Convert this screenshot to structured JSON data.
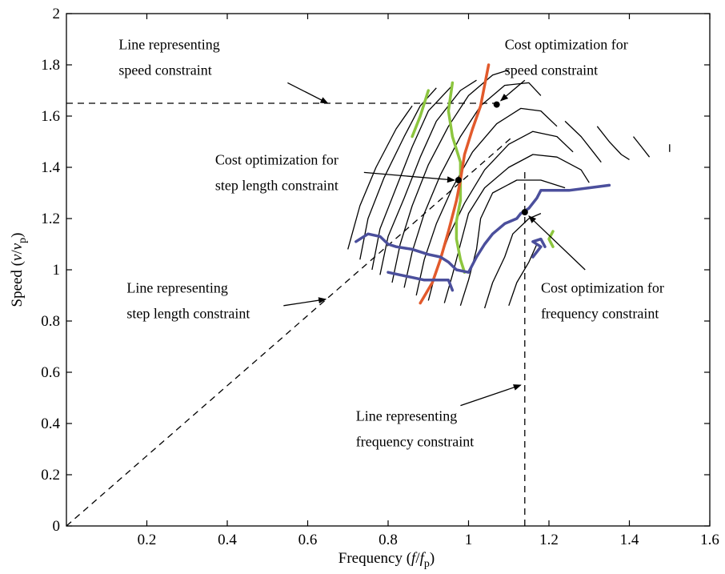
{
  "chart_data": {
    "type": "line",
    "xlim": [
      0,
      1.6
    ],
    "ylim": [
      0,
      2
    ],
    "grid": false,
    "x_ticks": [
      0.2,
      0.4,
      0.6,
      0.8,
      1,
      1.2,
      1.4,
      1.6
    ],
    "x_tick_labels": [
      "0.2",
      "0.4",
      "0.6",
      "0.8",
      "1",
      "1.2",
      "1.4",
      "1.6"
    ],
    "y_ticks": [
      0,
      0.2,
      0.4,
      0.6,
      0.8,
      1,
      1.2,
      1.4,
      1.6,
      1.8,
      2
    ],
    "y_tick_labels": [
      "0",
      "0.2",
      "0.4",
      "0.6",
      "0.8",
      "1",
      "1.2",
      "1.4",
      "1.6",
      "1.8",
      "2"
    ],
    "xlabel": {
      "main": "Frequency (",
      "italic": "f",
      "slash": "/",
      "italic2": "f",
      "sub": "p",
      "close": ")"
    },
    "ylabel": {
      "main": "Speed (",
      "italic": "v",
      "slash": "/",
      "italic2": "v",
      "sub": "p",
      "close": ")"
    },
    "constraint_lines": [
      {
        "kind": "speed",
        "points": [
          [
            0,
            1.65
          ],
          [
            1.07,
            1.65
          ]
        ]
      },
      {
        "kind": "step_length",
        "points": [
          [
            0,
            0
          ],
          [
            1.11,
            1.52
          ]
        ]
      },
      {
        "kind": "frequency",
        "points": [
          [
            1.14,
            0
          ],
          [
            1.14,
            1.4
          ]
        ]
      }
    ],
    "contours": [
      [
        [
          0.7,
          1.08
        ],
        [
          0.73,
          1.25
        ],
        [
          0.77,
          1.4
        ],
        [
          0.82,
          1.55
        ],
        [
          0.86,
          1.64
        ]
      ],
      [
        [
          0.73,
          1.04
        ],
        [
          0.75,
          1.2
        ],
        [
          0.79,
          1.36
        ],
        [
          0.84,
          1.52
        ],
        [
          0.88,
          1.64
        ],
        [
          0.92,
          1.71
        ]
      ],
      [
        [
          0.76,
          1.0
        ],
        [
          0.78,
          1.16
        ],
        [
          0.82,
          1.32
        ],
        [
          0.86,
          1.48
        ],
        [
          0.9,
          1.62
        ],
        [
          0.96,
          1.72
        ]
      ],
      [
        [
          0.78,
          0.98
        ],
        [
          0.8,
          1.13
        ],
        [
          0.84,
          1.28
        ],
        [
          0.88,
          1.44
        ],
        [
          0.92,
          1.58
        ],
        [
          0.98,
          1.7
        ],
        [
          1.02,
          1.74
        ]
      ],
      [
        [
          0.81,
          0.95
        ],
        [
          0.83,
          1.1
        ],
        [
          0.86,
          1.25
        ],
        [
          0.9,
          1.41
        ],
        [
          0.95,
          1.56
        ],
        [
          1.0,
          1.68
        ],
        [
          1.06,
          1.76
        ],
        [
          1.1,
          1.78
        ]
      ],
      [
        [
          0.84,
          0.93
        ],
        [
          0.86,
          1.07
        ],
        [
          0.89,
          1.22
        ],
        [
          0.93,
          1.37
        ],
        [
          0.98,
          1.52
        ],
        [
          1.03,
          1.64
        ],
        [
          1.09,
          1.72
        ],
        [
          1.15,
          1.73
        ],
        [
          1.18,
          1.68
        ]
      ],
      [
        [
          0.87,
          0.9
        ],
        [
          0.89,
          1.04
        ],
        [
          0.92,
          1.18
        ],
        [
          0.96,
          1.32
        ],
        [
          1.01,
          1.46
        ],
        [
          1.07,
          1.57
        ],
        [
          1.13,
          1.63
        ],
        [
          1.18,
          1.62
        ],
        [
          1.22,
          1.56
        ]
      ],
      [
        [
          0.9,
          0.88
        ],
        [
          0.92,
          1.0
        ],
        [
          0.95,
          1.13
        ],
        [
          0.99,
          1.26
        ],
        [
          1.04,
          1.39
        ],
        [
          1.1,
          1.49
        ],
        [
          1.16,
          1.54
        ],
        [
          1.22,
          1.52
        ],
        [
          1.26,
          1.46
        ]
      ],
      [
        [
          0.94,
          0.87
        ],
        [
          0.96,
          0.98
        ],
        [
          0.98,
          1.1
        ],
        [
          1.0,
          1.22
        ],
        [
          1.04,
          1.32
        ],
        [
          1.1,
          1.4
        ],
        [
          1.16,
          1.45
        ],
        [
          1.22,
          1.44
        ],
        [
          1.28,
          1.39
        ],
        [
          1.3,
          1.34
        ]
      ],
      [
        [
          0.98,
          0.86
        ],
        [
          1.0,
          0.96
        ],
        [
          1.02,
          1.08
        ],
        [
          1.03,
          1.2
        ],
        [
          1.06,
          1.3
        ],
        [
          1.12,
          1.35
        ],
        [
          1.18,
          1.35
        ],
        [
          1.24,
          1.32
        ]
      ],
      [
        [
          1.04,
          0.85
        ],
        [
          1.06,
          0.95
        ],
        [
          1.09,
          1.05
        ],
        [
          1.11,
          1.14
        ],
        [
          1.15,
          1.2
        ],
        [
          1.18,
          1.22
        ]
      ],
      [
        [
          1.1,
          0.86
        ],
        [
          1.12,
          0.95
        ],
        [
          1.15,
          1.03
        ],
        [
          1.17,
          1.1
        ]
      ],
      [
        [
          1.24,
          1.58
        ],
        [
          1.28,
          1.52
        ],
        [
          1.31,
          1.46
        ],
        [
          1.33,
          1.42
        ]
      ],
      [
        [
          1.32,
          1.56
        ],
        [
          1.35,
          1.5
        ],
        [
          1.38,
          1.45
        ],
        [
          1.4,
          1.43
        ]
      ],
      [
        [
          1.41,
          1.52
        ],
        [
          1.43,
          1.48
        ],
        [
          1.45,
          1.44
        ]
      ],
      [
        [
          1.5,
          1.49
        ],
        [
          1.5,
          1.46
        ]
      ]
    ],
    "series": [
      {
        "color": "#8dc63f",
        "points": [
          [
            0.86,
            1.52
          ],
          [
            0.88,
            1.6
          ],
          [
            0.9,
            1.7
          ]
        ]
      },
      {
        "color": "#8dc63f",
        "points": [
          [
            0.96,
            1.73
          ],
          [
            0.95,
            1.62
          ],
          [
            0.96,
            1.52
          ],
          [
            0.98,
            1.42
          ],
          [
            0.98,
            1.35
          ],
          [
            0.98,
            1.27
          ],
          [
            0.97,
            1.19
          ],
          [
            0.97,
            1.12
          ],
          [
            0.98,
            1.04
          ],
          [
            0.99,
            0.99
          ]
        ]
      },
      {
        "color": "#8dc63f",
        "points": [
          [
            1.21,
            1.09
          ],
          [
            1.2,
            1.12
          ],
          [
            1.21,
            1.15
          ]
        ]
      },
      {
        "color": "#e25a2c",
        "points": [
          [
            0.88,
            0.87
          ],
          [
            0.91,
            0.95
          ],
          [
            0.93,
            1.04
          ],
          [
            0.95,
            1.15
          ],
          [
            0.97,
            1.27
          ],
          [
            0.98,
            1.35
          ],
          [
            0.99,
            1.45
          ],
          [
            1.01,
            1.55
          ],
          [
            1.03,
            1.64
          ],
          [
            1.04,
            1.72
          ],
          [
            1.05,
            1.8
          ]
        ]
      },
      {
        "color": "#4b4f9c",
        "points": [
          [
            0.72,
            1.11
          ],
          [
            0.75,
            1.14
          ],
          [
            0.78,
            1.13
          ],
          [
            0.8,
            1.1
          ],
          [
            0.82,
            1.09
          ],
          [
            0.86,
            1.08
          ],
          [
            0.9,
            1.06
          ],
          [
            0.93,
            1.05
          ],
          [
            0.95,
            1.03
          ],
          [
            0.97,
            1.0
          ],
          [
            1.0,
            0.99
          ],
          [
            1.02,
            1.05
          ],
          [
            1.04,
            1.1
          ],
          [
            1.06,
            1.14
          ],
          [
            1.09,
            1.18
          ],
          [
            1.12,
            1.2
          ],
          [
            1.13,
            1.22
          ],
          [
            1.15,
            1.24
          ],
          [
            1.17,
            1.28
          ],
          [
            1.18,
            1.31
          ],
          [
            1.21,
            1.31
          ],
          [
            1.25,
            1.31
          ],
          [
            1.3,
            1.32
          ],
          [
            1.35,
            1.33
          ]
        ]
      },
      {
        "color": "#4b4f9c",
        "points": [
          [
            0.8,
            0.99
          ],
          [
            0.83,
            0.98
          ],
          [
            0.86,
            0.97
          ],
          [
            0.89,
            0.96
          ],
          [
            0.92,
            0.96
          ],
          [
            0.95,
            0.96
          ],
          [
            0.96,
            0.92
          ]
        ]
      },
      {
        "color": "#4b4f9c",
        "points": [
          [
            1.16,
            1.05
          ],
          [
            1.18,
            1.09
          ],
          [
            1.16,
            1.11
          ],
          [
            1.18,
            1.12
          ],
          [
            1.19,
            1.09
          ]
        ]
      }
    ],
    "optima": [
      {
        "kind": "speed",
        "x": 1.07,
        "y": 1.645
      },
      {
        "kind": "step_length",
        "x": 0.975,
        "y": 1.35
      },
      {
        "kind": "frequency",
        "x": 1.14,
        "y": 1.225
      }
    ],
    "annotations": [
      {
        "id": "speed_line",
        "lines": [
          "Line representing",
          "speed constraint"
        ],
        "anchor": "left",
        "text_x": 0.13,
        "text_y": [
          1.88,
          1.78
        ],
        "arrow_from": [
          0.55,
          1.73
        ],
        "arrow_to": [
          0.65,
          1.65
        ]
      },
      {
        "id": "speed_opt",
        "lines": [
          "Cost optimization for",
          "speed constraint"
        ],
        "anchor": "left",
        "text_x": 1.09,
        "text_y": [
          1.88,
          1.78
        ],
        "arrow_from": [
          1.14,
          1.74
        ],
        "arrow_to": [
          1.08,
          1.66
        ]
      },
      {
        "id": "step_opt",
        "lines": [
          "Cost optimization for",
          "step length constraint"
        ],
        "anchor": "left",
        "text_x": 0.37,
        "text_y": [
          1.43,
          1.33
        ],
        "arrow_from": [
          0.74,
          1.38
        ],
        "arrow_to": [
          0.965,
          1.35
        ]
      },
      {
        "id": "step_line",
        "lines": [
          "Line representing",
          "step length constraint"
        ],
        "anchor": "left",
        "text_x": 0.15,
        "text_y": [
          0.93,
          0.83
        ],
        "arrow_from": [
          0.54,
          0.86
        ],
        "arrow_to": [
          0.645,
          0.885
        ]
      },
      {
        "id": "freq_opt",
        "lines": [
          "Cost optimization for",
          "frequency constraint"
        ],
        "anchor": "left",
        "text_x": 1.18,
        "text_y": [
          0.93,
          0.83
        ],
        "arrow_from": [
          1.29,
          1.0
        ],
        "arrow_to": [
          1.15,
          1.21
        ]
      },
      {
        "id": "freq_line",
        "lines": [
          "Line representing",
          "frequency constraint"
        ],
        "anchor": "left",
        "text_x": 0.72,
        "text_y": [
          0.43,
          0.33
        ],
        "arrow_from": [
          0.98,
          0.47
        ],
        "arrow_to": [
          1.13,
          0.55
        ]
      }
    ]
  }
}
